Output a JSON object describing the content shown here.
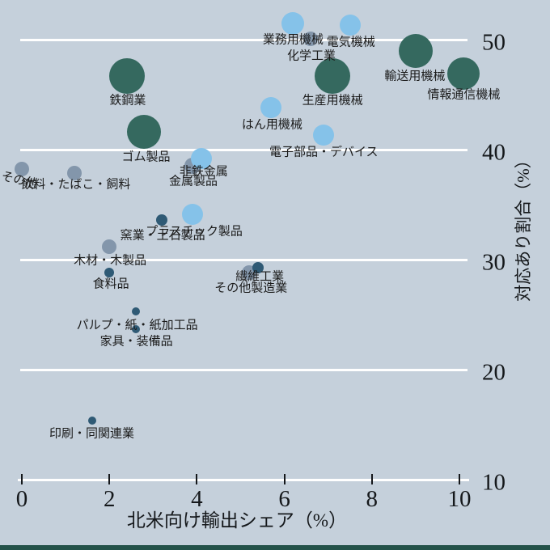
{
  "chart_data": {
    "type": "scatter",
    "subtype": "bubble",
    "title": "",
    "xlabel": "北米向け輸出シェア（%）",
    "ylabel": "対応あり割合（%）",
    "xlim": [
      0,
      10
    ],
    "ylim": [
      10,
      52
    ],
    "x_ticks": [
      0,
      2,
      4,
      6,
      8,
      10
    ],
    "y_ticks": [
      50,
      40,
      30,
      20,
      10
    ],
    "grid": "horizontal-white-lines-at-20-30-40-50",
    "legend": "none",
    "background_color": "#c5d0db",
    "gridline_color": "#ffffff",
    "border_bottom_color": "#24524a",
    "series": [
      {
        "name": "slate-gray-group",
        "color": "#8396ab",
        "points": [
          {
            "label": "化学工業",
            "x": 6.6,
            "y": 50.1,
            "r": 9,
            "label_dx": 1,
            "label_dy": 20
          },
          {
            "label": "金属製品",
            "x": 3.9,
            "y": 38.5,
            "r": 10,
            "label_dx": 1,
            "label_dy": 18
          },
          {
            "label": "その他",
            "x": 0.0,
            "y": 38.2,
            "r": 9,
            "label_dx": -3,
            "label_dy": 13,
            "label_rotation": 14
          },
          {
            "label": "飲料・たばこ・飼料",
            "x": 1.2,
            "y": 37.9,
            "r": 9,
            "label_dx": 2,
            "label_dy": 13
          },
          {
            "label": "木材・木製品",
            "x": 2.0,
            "y": 31.2,
            "r": 9,
            "label_dx": 1,
            "label_dy": 16
          },
          {
            "label": "その他製造業",
            "x": 5.2,
            "y": 28.8,
            "r": 9,
            "label_dx": 2,
            "label_dy": 18
          }
        ]
      },
      {
        "name": "teal-group",
        "color": "#35695f",
        "points": [
          {
            "label": "輸送用機械",
            "x": 9.0,
            "y": 49.0,
            "r": 21,
            "label_dx": -1,
            "label_dy": 30
          },
          {
            "label": "情報通信機械",
            "x": 10.1,
            "y": 46.9,
            "r": 20,
            "label_dx": 0,
            "label_dy": 25
          },
          {
            "label": "生産用機械",
            "x": 7.1,
            "y": 46.7,
            "r": 22,
            "label_dx": 0,
            "label_dy": 29
          },
          {
            "label": "鉄鋼業",
            "x": 2.4,
            "y": 46.7,
            "r": 22,
            "label_dx": 1,
            "label_dy": 29
          },
          {
            "label": "ゴム製品",
            "x": 2.8,
            "y": 41.6,
            "r": 21,
            "label_dx": 2,
            "label_dy": 30
          }
        ]
      },
      {
        "name": "light-blue-group",
        "color": "#85c2e9",
        "points": [
          {
            "label": "業務用機械",
            "x": 6.2,
            "y": 51.5,
            "r": 14,
            "label_dx": 0,
            "label_dy": 19
          },
          {
            "label": "電気機械",
            "x": 7.5,
            "y": 51.3,
            "r": 13,
            "label_dx": 1,
            "label_dy": 20
          },
          {
            "label": "はん用機械",
            "x": 5.7,
            "y": 43.8,
            "r": 13,
            "label_dx": 1,
            "label_dy": 20
          },
          {
            "label": "電子部品・デバイス",
            "x": 6.9,
            "y": 41.3,
            "r": 13,
            "label_dx": 0,
            "label_dy": 20
          },
          {
            "label": "非鉄金属",
            "x": 4.1,
            "y": 39.2,
            "r": 13,
            "label_dx": 3,
            "label_dy": 15
          },
          {
            "label": "プラスチック製品",
            "x": 3.9,
            "y": 34.1,
            "r": 13,
            "label_dx": 2,
            "label_dy": 20
          }
        ]
      },
      {
        "name": "dark-slate-group",
        "color": "#2f5a75",
        "points": [
          {
            "label": "窯業・土石製品",
            "x": 3.2,
            "y": 33.6,
            "r": 7,
            "label_dx": 1,
            "label_dy": 18
          },
          {
            "label": "食料品",
            "x": 2.0,
            "y": 28.8,
            "r": 6,
            "label_dx": 2,
            "label_dy": 13
          },
          {
            "label": "繊維工業",
            "x": 5.4,
            "y": 29.3,
            "r": 7,
            "label_dx": 2,
            "label_dy": 10
          },
          {
            "label": "パルプ・紙・紙加工品",
            "x": 2.6,
            "y": 25.3,
            "r": 5,
            "label_dx": 2,
            "label_dy": 16
          },
          {
            "label": "家具・装備品",
            "x": 2.6,
            "y": 23.7,
            "r": 5,
            "label_dx": 1,
            "label_dy": 14
          },
          {
            "label": "印刷・同関連業",
            "x": 1.6,
            "y": 15.4,
            "r": 5,
            "label_dx": 0,
            "label_dy": 15
          }
        ]
      }
    ]
  }
}
